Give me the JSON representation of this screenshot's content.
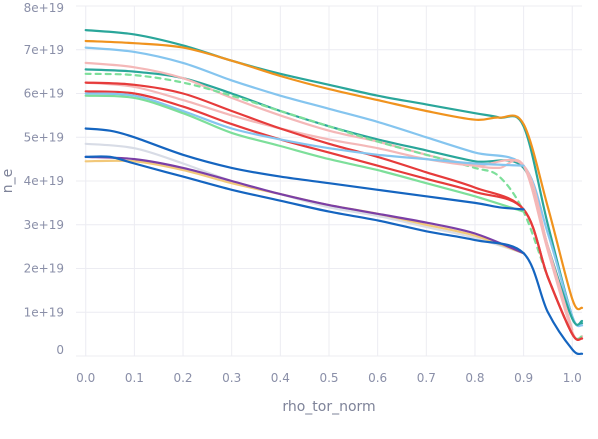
{
  "chart_data": {
    "type": "line",
    "xlabel": "rho_tor_norm",
    "ylabel": "n_e",
    "xlim": [
      -0.02,
      1.02
    ],
    "ylim": [
      0,
      8e+19
    ],
    "xticks": [
      0.0,
      0.1,
      0.2,
      0.3,
      0.4,
      0.5,
      0.6,
      0.7,
      0.8,
      0.9,
      1.0
    ],
    "xtick_labels": [
      "0.0",
      "0.1",
      "0.2",
      "0.3",
      "0.4",
      "0.5",
      "0.6",
      "0.7",
      "0.8",
      "0.9",
      "1.0"
    ],
    "yticks": [
      0,
      1e+19,
      2e+19,
      3e+19,
      4e+19,
      5e+19,
      6e+19,
      7e+19,
      8e+19
    ],
    "ytick_labels": [
      "0",
      "1e+19",
      "2e+19",
      "3e+19",
      "4e+19",
      "5e+19",
      "6e+19",
      "7e+19",
      "8e+19"
    ],
    "grid": true,
    "legend": "none",
    "series": [
      {
        "color": "#2aa69a",
        "dash": false,
        "x": [
          0.0,
          0.1,
          0.2,
          0.3,
          0.4,
          0.5,
          0.6,
          0.7,
          0.8,
          0.85,
          0.9,
          0.95,
          1.0,
          1.02
        ],
        "y": [
          7.45e+19,
          7.35e+19,
          7.1e+19,
          6.75e+19,
          6.45e+19,
          6.2e+19,
          5.95e+19,
          5.75e+19,
          5.55e+19,
          5.45e+19,
          5.25e+19,
          3e+19,
          9e+18,
          7.5e+18
        ]
      },
      {
        "color": "#f0931e",
        "dash": false,
        "x": [
          0.0,
          0.1,
          0.2,
          0.3,
          0.4,
          0.5,
          0.6,
          0.7,
          0.8,
          0.85,
          0.9,
          0.95,
          1.0,
          1.02
        ],
        "y": [
          7.2e+19,
          7.15e+19,
          7.05e+19,
          6.75e+19,
          6.4e+19,
          6.1e+19,
          5.85e+19,
          5.6e+19,
          5.4e+19,
          5.45e+19,
          5.3e+19,
          3.4e+19,
          1.3e+19,
          1.1e+19
        ]
      },
      {
        "color": "#85c5ef",
        "dash": false,
        "x": [
          0.0,
          0.1,
          0.2,
          0.3,
          0.4,
          0.5,
          0.6,
          0.7,
          0.8,
          0.9,
          0.95,
          1.0,
          1.02
        ],
        "y": [
          7.05e+19,
          6.95e+19,
          6.7e+19,
          6.3e+19,
          5.95e+19,
          5.65e+19,
          5.35e+19,
          5e+19,
          4.65e+19,
          4.35e+19,
          2.8e+19,
          9e+18,
          7e+18
        ]
      },
      {
        "color": "#2aa69a",
        "dash": false,
        "x": [
          0.0,
          0.1,
          0.2,
          0.3,
          0.4,
          0.5,
          0.6,
          0.7,
          0.8,
          0.9,
          0.95,
          1.0,
          1.02
        ],
        "y": [
          6.55e+19,
          6.5e+19,
          6.35e+19,
          6e+19,
          5.6e+19,
          5.25e+19,
          4.95e+19,
          4.7e+19,
          4.45e+19,
          4.3e+19,
          2.5e+19,
          8.5e+18,
          8e+18
        ]
      },
      {
        "color": "#f4b8b8",
        "dash": false,
        "x": [
          0.0,
          0.1,
          0.2,
          0.3,
          0.4,
          0.5,
          0.6,
          0.7,
          0.8,
          0.85,
          0.9,
          0.95,
          1.0,
          1.02
        ],
        "y": [
          6.7e+19,
          6.6e+19,
          6.35e+19,
          5.9e+19,
          5.5e+19,
          5.15e+19,
          4.9e+19,
          4.6e+19,
          4.35e+19,
          4.3e+19,
          4.35e+19,
          2.4e+19,
          5.5e+18,
          4.5e+18
        ]
      },
      {
        "color": "#7ddf9a",
        "dash": true,
        "x": [
          0.0,
          0.1,
          0.2,
          0.3,
          0.4,
          0.5,
          0.6,
          0.7,
          0.8,
          0.85,
          0.9,
          0.95,
          1.0,
          1.02
        ],
        "y": [
          6.45e+19,
          6.42e+19,
          6.25e+19,
          5.95e+19,
          5.6e+19,
          5.25e+19,
          4.9e+19,
          4.6e+19,
          4.3e+19,
          4.1e+19,
          3.3e+19,
          1.8e+19,
          5e+18,
          4.5e+18
        ]
      },
      {
        "color": "#f4b8b8",
        "dash": false,
        "x": [
          0.0,
          0.1,
          0.2,
          0.3,
          0.4,
          0.5,
          0.6,
          0.7,
          0.8,
          0.9,
          0.95,
          1.0
        ],
        "y": [
          6.25e+19,
          6.15e+19,
          5.85e+19,
          5.5e+19,
          5.2e+19,
          4.95e+19,
          4.75e+19,
          4.5e+19,
          4.35e+19,
          4.35e+19,
          2.5e+19,
          6e+18
        ]
      },
      {
        "color": "#e63b3b",
        "dash": false,
        "x": [
          0.0,
          0.1,
          0.2,
          0.3,
          0.4,
          0.5,
          0.6,
          0.7,
          0.8,
          0.9,
          0.95,
          1.0,
          1.02
        ],
        "y": [
          6.25e+19,
          6.2e+19,
          6e+19,
          5.6e+19,
          5.2e+19,
          4.85e+19,
          4.55e+19,
          4.2e+19,
          3.85e+19,
          3.35e+19,
          1.8e+19,
          5e+18,
          4e+18
        ]
      },
      {
        "color": "#e63b3b",
        "dash": false,
        "x": [
          0.0,
          0.1,
          0.2,
          0.3,
          0.4,
          0.5,
          0.6,
          0.7,
          0.8,
          0.9,
          0.95,
          1.0,
          1.02
        ],
        "y": [
          6.05e+19,
          6e+19,
          5.7e+19,
          5.3e+19,
          4.95e+19,
          4.65e+19,
          4.35e+19,
          4.05e+19,
          3.75e+19,
          3.35e+19,
          1.8e+19,
          5e+18,
          4e+18
        ]
      },
      {
        "color": "#85c5ef",
        "dash": false,
        "x": [
          0.0,
          0.1,
          0.2,
          0.3,
          0.4,
          0.5,
          0.6,
          0.7,
          0.8,
          0.9
        ],
        "y": [
          6e+19,
          5.95e+19,
          5.6e+19,
          5.2e+19,
          4.95e+19,
          4.75e+19,
          4.6e+19,
          4.5e+19,
          4.4e+19,
          4.35e+19
        ]
      },
      {
        "color": "#7ddf9a",
        "dash": false,
        "x": [
          0.0,
          0.1,
          0.2,
          0.3,
          0.4,
          0.5,
          0.6,
          0.7,
          0.8,
          0.9
        ],
        "y": [
          5.95e+19,
          5.9e+19,
          5.55e+19,
          5.1e+19,
          4.8e+19,
          4.5e+19,
          4.25e+19,
          3.95e+19,
          3.65e+19,
          3.3e+19
        ]
      },
      {
        "color": "#1565c0",
        "dash": false,
        "x": [
          0.0,
          0.05,
          0.1,
          0.2,
          0.3,
          0.4,
          0.5,
          0.6,
          0.7,
          0.8,
          0.85,
          0.9
        ],
        "y": [
          5.2e+19,
          5.15e+19,
          5e+19,
          4.6e+19,
          4.3e+19,
          4.1e+19,
          3.95e+19,
          3.8e+19,
          3.65e+19,
          3.5e+19,
          3.4e+19,
          3.35e+19
        ]
      },
      {
        "color": "#d8dce6",
        "dash": false,
        "x": [
          0.0,
          0.1,
          0.2,
          0.3,
          0.4,
          0.5,
          0.6,
          0.7,
          0.8,
          0.9
        ],
        "y": [
          4.85e+19,
          4.75e+19,
          4.4e+19,
          4e+19,
          3.7e+19,
          3.4e+19,
          3.2e+19,
          2.95e+19,
          2.7e+19,
          2.35e+19
        ]
      },
      {
        "color": "#f2c879",
        "dash": false,
        "x": [
          0.0,
          0.1,
          0.2,
          0.3,
          0.4,
          0.5,
          0.6,
          0.7,
          0.8,
          0.9
        ],
        "y": [
          4.45e+19,
          4.45e+19,
          4.25e+19,
          3.95e+19,
          3.7e+19,
          3.45e+19,
          3.25e+19,
          3e+19,
          2.75e+19,
          2.35e+19
        ]
      },
      {
        "color": "#7b3fa6",
        "dash": false,
        "x": [
          0.0,
          0.1,
          0.2,
          0.3,
          0.4,
          0.5,
          0.6,
          0.7,
          0.8,
          0.9
        ],
        "y": [
          4.55e+19,
          4.5e+19,
          4.3e+19,
          4e+19,
          3.7e+19,
          3.45e+19,
          3.25e+19,
          3.05e+19,
          2.8e+19,
          2.35e+19
        ]
      },
      {
        "color": "#1565c0",
        "dash": false,
        "x": [
          0.0,
          0.05,
          0.1,
          0.2,
          0.3,
          0.4,
          0.5,
          0.6,
          0.7,
          0.8,
          0.9,
          0.95,
          1.0,
          1.02
        ],
        "y": [
          4.55e+19,
          4.55e+19,
          4.4e+19,
          4.1e+19,
          3.8e+19,
          3.55e+19,
          3.3e+19,
          3.1e+19,
          2.85e+19,
          2.65e+19,
          2.35e+19,
          1e+19,
          1.5e+18,
          5e+17
        ]
      }
    ]
  }
}
